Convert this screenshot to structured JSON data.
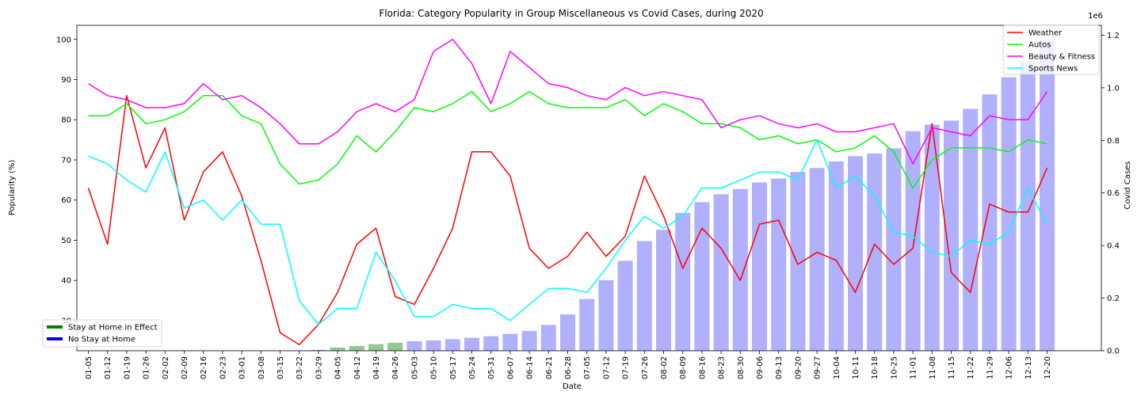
{
  "chart_data": {
    "type": "bar+line",
    "title": "Florida: Category Popularity in Group Miscellaneous vs Covid Cases, during 2020",
    "xlabel": "Date",
    "ylabel": "Popularity (%)",
    "y2label": "Covid Cases",
    "y2_offset_text": "1e6",
    "ylim": [
      22.5,
      103.5
    ],
    "y2lim": [
      0,
      1.2375
    ],
    "yticks": [
      "30",
      "40",
      "50",
      "60",
      "70",
      "80",
      "90",
      "100"
    ],
    "y2ticks": [
      "0.0",
      "0.2",
      "0.4",
      "0.6",
      "0.8",
      "1.0",
      "1.2"
    ],
    "categories": [
      "01-05",
      "01-12",
      "01-19",
      "01-26",
      "02-02",
      "02-09",
      "02-16",
      "02-23",
      "03-01",
      "03-08",
      "03-15",
      "03-22",
      "03-29",
      "04-05",
      "04-12",
      "04-19",
      "04-26",
      "05-03",
      "05-10",
      "05-17",
      "05-24",
      "05-31",
      "06-07",
      "06-14",
      "06-21",
      "06-28",
      "07-05",
      "07-12",
      "07-19",
      "07-26",
      "08-02",
      "08-09",
      "08-16",
      "08-23",
      "08-30",
      "09-06",
      "09-13",
      "09-20",
      "09-27",
      "10-04",
      "10-11",
      "10-18",
      "10-25",
      "11-01",
      "11-08",
      "11-15",
      "11-22",
      "11-29",
      "12-06",
      "12-13",
      "12-20"
    ],
    "bars": {
      "name": "Covid Cases",
      "unit_multiplier": "1e6",
      "values": [
        0,
        0,
        0,
        0,
        0,
        0,
        0,
        0,
        0,
        0,
        0,
        0,
        0.003,
        0.012,
        0.018,
        0.025,
        0.03,
        0.036,
        0.039,
        0.044,
        0.049,
        0.055,
        0.064,
        0.075,
        0.098,
        0.138,
        0.197,
        0.268,
        0.342,
        0.417,
        0.46,
        0.524,
        0.565,
        0.595,
        0.615,
        0.64,
        0.655,
        0.68,
        0.695,
        0.72,
        0.74,
        0.75,
        0.77,
        0.835,
        0.86,
        0.875,
        0.92,
        0.975,
        1.04,
        1.1,
        1.18
      ],
      "color_stay_home": "#93c793",
      "color_no_stay": "#b0b0fc",
      "stay_home_indices": [
        13,
        14,
        15,
        16
      ]
    },
    "series": [
      {
        "name": "Weather",
        "color": "#ff0000",
        "values": [
          63,
          49,
          86,
          68,
          78,
          55,
          67,
          72,
          61,
          45,
          27,
          24,
          29,
          37,
          49,
          53,
          36,
          34,
          43,
          53,
          72,
          72,
          66,
          48,
          43,
          46,
          52,
          46,
          51,
          66,
          56,
          43,
          53,
          48,
          40,
          54,
          55,
          44,
          47,
          45,
          37,
          49,
          44,
          48,
          79,
          42,
          37,
          59,
          57,
          57,
          68
        ]
      },
      {
        "name": "Autos",
        "color": "#00ff00",
        "values": [
          81,
          81,
          84,
          79,
          80,
          82,
          86,
          86,
          81,
          79,
          69,
          64,
          65,
          69,
          76,
          72,
          77,
          83,
          82,
          84,
          87,
          82,
          84,
          87,
          84,
          83,
          83,
          83,
          85,
          81,
          84,
          82,
          79,
          79,
          78,
          75,
          76,
          74,
          75,
          72,
          73,
          76,
          72,
          63,
          70,
          73,
          73,
          73,
          72,
          75,
          74
        ]
      },
      {
        "name": "Beauty & Fitness",
        "color": "#ff00ff",
        "values": [
          89,
          86,
          85,
          83,
          83,
          84,
          89,
          85,
          86,
          83,
          79,
          74,
          74,
          77,
          82,
          84,
          82,
          85,
          97,
          100,
          94,
          84,
          97,
          93,
          89,
          88,
          86,
          85,
          88,
          86,
          87,
          86,
          85,
          78,
          80,
          81,
          79,
          78,
          79,
          77,
          77,
          78,
          79,
          69,
          78,
          77,
          76,
          81,
          80,
          80,
          87
        ]
      },
      {
        "name": "Sports News",
        "color": "#00ffff",
        "values": [
          71,
          69,
          65,
          62,
          72,
          58,
          60,
          55,
          60,
          54,
          54,
          35,
          29,
          33,
          33,
          47,
          40,
          31,
          31,
          34,
          33,
          33,
          30,
          34,
          38,
          38,
          37,
          43,
          50,
          56,
          53,
          56,
          63,
          63,
          65,
          67,
          67,
          65,
          75,
          63,
          66,
          61,
          52,
          51,
          47,
          46,
          50,
          49,
          52,
          63,
          54
        ]
      }
    ],
    "legend_top_right": [
      "Weather",
      "Autos",
      "Beauty & Fitness",
      "Sports News"
    ],
    "legend_bottom_left": [
      {
        "label": "Stay at Home in Effect",
        "color": "#008000"
      },
      {
        "label": "No Stay at Home",
        "color": "#0000ff"
      }
    ],
    "grid": false
  }
}
